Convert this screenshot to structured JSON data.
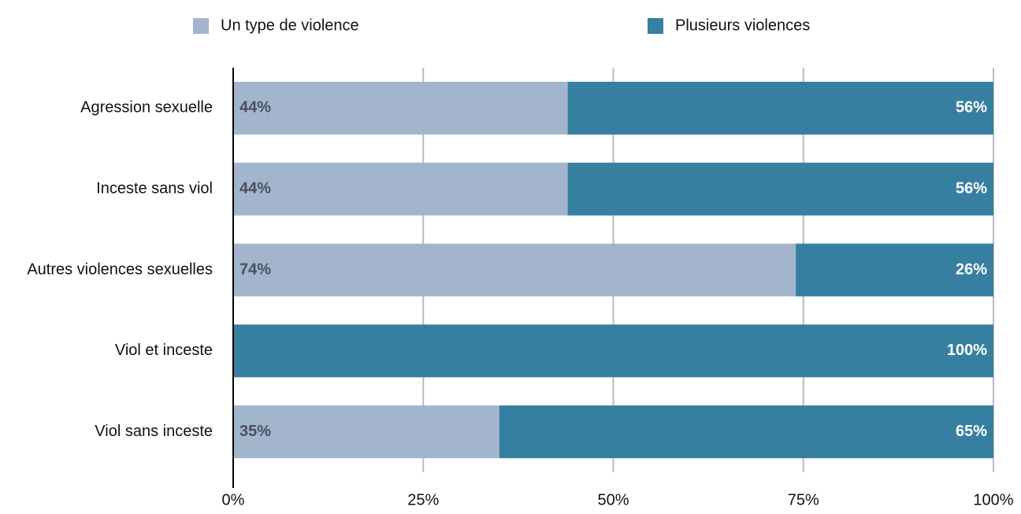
{
  "chart_data": {
    "type": "stacked_bar_horizontal",
    "categories": [
      "Agression sexuelle",
      "Inceste sans viol",
      "Autres violences sexuelles",
      "Viol et inceste",
      "Viol sans inceste"
    ],
    "series": [
      {
        "name": "Un type de violence",
        "color": "#a3b5cc",
        "values": [
          44,
          44,
          74,
          0,
          35
        ],
        "value_labels": [
          "44%",
          "44%",
          "74%",
          null,
          "35%"
        ]
      },
      {
        "name": "Plusieurs violences",
        "color": "#367fa0",
        "values": [
          56,
          56,
          26,
          100,
          65
        ],
        "value_labels": [
          "56%",
          "56%",
          "26%",
          "100%",
          "65%"
        ]
      }
    ],
    "xlim": [
      0,
      100
    ],
    "xticks": [
      {
        "value": 0,
        "label": "0%"
      },
      {
        "value": 25,
        "label": "25%"
      },
      {
        "value": 50,
        "label": "50%"
      },
      {
        "value": 75,
        "label": "75%"
      },
      {
        "value": 100,
        "label": "100%"
      }
    ],
    "grid": true,
    "legend": "top"
  }
}
